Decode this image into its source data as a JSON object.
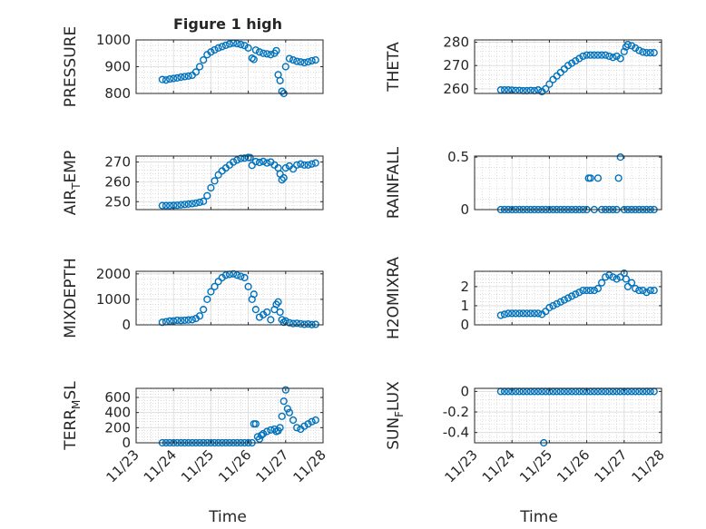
{
  "figure": {
    "title": "Figure 1 high",
    "xlabel": "Time",
    "marker_color": "#0072BD",
    "grid": "major+minor dotted"
  },
  "chart_data": [
    {
      "type": "scatter",
      "panel": "pressure",
      "ylabel_parts": [
        "PRESSURE"
      ],
      "ylim": [
        800,
        1000
      ],
      "yticks": [
        800,
        900,
        1000
      ],
      "ytick_labels": [
        "800",
        "900",
        "1000"
      ],
      "xlim": [
        0,
        5
      ],
      "xticks": [
        0,
        1,
        2,
        3,
        4,
        5
      ],
      "xtick_labels": [
        "11/23",
        "11/24",
        "11/25",
        "11/26",
        "11/27",
        "11/28"
      ],
      "x": [
        0.7,
        0.8,
        0.9,
        1.0,
        1.1,
        1.2,
        1.3,
        1.4,
        1.5,
        1.6,
        1.7,
        1.8,
        1.9,
        2.0,
        2.1,
        2.2,
        2.3,
        2.4,
        2.5,
        2.6,
        2.7,
        2.8,
        2.9,
        3.0,
        3.1,
        3.15,
        3.2,
        3.3,
        3.4,
        3.5,
        3.6,
        3.7,
        3.75,
        3.8,
        3.85,
        3.9,
        3.95,
        4.0,
        4.1,
        4.2,
        4.3,
        4.4,
        4.5,
        4.6,
        4.7,
        4.8
      ],
      "y": [
        852,
        850,
        854,
        856,
        858,
        861,
        863,
        865,
        868,
        880,
        900,
        925,
        945,
        955,
        963,
        970,
        975,
        980,
        985,
        988,
        986,
        983,
        979,
        970,
        932,
        927,
        962,
        955,
        950,
        948,
        945,
        950,
        960,
        870,
        848,
        808,
        800,
        900,
        930,
        925,
        920,
        918,
        915,
        918,
        922,
        925
      ]
    },
    {
      "type": "scatter",
      "panel": "theta",
      "ylabel_parts": [
        "THETA"
      ],
      "ylim": [
        258,
        281
      ],
      "yticks": [
        260,
        270,
        280
      ],
      "ytick_labels": [
        "260",
        "270",
        "280"
      ],
      "xlim": [
        0,
        5
      ],
      "xticks": [
        0,
        1,
        2,
        3,
        4,
        5
      ],
      "xtick_labels": [
        "11/23",
        "11/24",
        "11/25",
        "11/26",
        "11/27",
        "11/28"
      ],
      "x": [
        0.7,
        0.8,
        0.9,
        1.0,
        1.1,
        1.2,
        1.3,
        1.4,
        1.5,
        1.6,
        1.7,
        1.8,
        1.9,
        2.0,
        2.1,
        2.2,
        2.3,
        2.4,
        2.5,
        2.6,
        2.7,
        2.8,
        2.9,
        3.0,
        3.1,
        3.2,
        3.3,
        3.4,
        3.5,
        3.6,
        3.7,
        3.8,
        3.9,
        4.0,
        4.05,
        4.1,
        4.2,
        4.3,
        4.4,
        4.5,
        4.6,
        4.7,
        4.8
      ],
      "y": [
        259.5,
        259.5,
        259.5,
        259.4,
        259.3,
        259.3,
        259.2,
        259.2,
        259.3,
        259.2,
        259.5,
        258.8,
        260,
        262,
        264,
        265.5,
        267,
        268.5,
        270,
        271,
        272,
        273,
        274,
        274.5,
        274.5,
        274.5,
        274.5,
        274.5,
        274.5,
        274,
        273.5,
        274,
        273,
        276,
        278,
        279,
        278.5,
        277.5,
        276.5,
        275.8,
        275.5,
        275.5,
        275.5
      ]
    },
    {
      "type": "scatter",
      "panel": "air_temp",
      "ylabel_parts": [
        "AIR",
        "T",
        "EMP"
      ],
      "ylim": [
        246,
        273
      ],
      "yticks": [
        250,
        260,
        270
      ],
      "ytick_labels": [
        "250",
        "260",
        "270"
      ],
      "xlim": [
        0,
        5
      ],
      "xticks": [
        0,
        1,
        2,
        3,
        4,
        5
      ],
      "xtick_labels": [
        "11/23",
        "11/24",
        "11/25",
        "11/26",
        "11/27",
        "11/28"
      ],
      "x": [
        0.7,
        0.8,
        0.9,
        1.0,
        1.1,
        1.2,
        1.3,
        1.4,
        1.5,
        1.6,
        1.7,
        1.8,
        1.9,
        2.0,
        2.1,
        2.2,
        2.3,
        2.4,
        2.5,
        2.6,
        2.7,
        2.8,
        2.9,
        3.0,
        3.05,
        3.1,
        3.2,
        3.3,
        3.4,
        3.5,
        3.6,
        3.7,
        3.8,
        3.85,
        3.9,
        3.95,
        4.0,
        4.1,
        4.2,
        4.3,
        4.4,
        4.5,
        4.6,
        4.7,
        4.8
      ],
      "y": [
        248.0,
        248.0,
        248.0,
        248.1,
        248.2,
        248.4,
        248.6,
        248.8,
        249.0,
        249.3,
        249.7,
        250.2,
        253,
        257,
        260.5,
        263.5,
        265.5,
        267,
        268.5,
        270,
        271,
        271.8,
        272,
        272.3,
        272.2,
        268.3,
        270.2,
        269.8,
        270.3,
        269.5,
        270,
        268.5,
        267,
        264,
        261,
        262,
        267,
        268,
        266.5,
        268.5,
        269,
        268.5,
        268.5,
        269,
        269.5
      ]
    },
    {
      "type": "scatter",
      "panel": "rainfall",
      "ylabel_parts": [
        "RAINFALL"
      ],
      "ylim": [
        0,
        0.51
      ],
      "yticks": [
        0,
        0.5
      ],
      "ytick_labels": [
        "0",
        "0.5"
      ],
      "xlim": [
        0,
        5
      ],
      "xticks": [
        0,
        1,
        2,
        3,
        4,
        5
      ],
      "xtick_labels": [
        "11/23",
        "11/24",
        "11/25",
        "11/26",
        "11/27",
        "11/28"
      ],
      "x": [
        0.7,
        0.8,
        0.9,
        1.0,
        1.1,
        1.2,
        1.3,
        1.4,
        1.5,
        1.6,
        1.7,
        1.8,
        1.9,
        2.0,
        2.1,
        2.2,
        2.3,
        2.4,
        2.5,
        2.6,
        2.7,
        2.8,
        2.9,
        3.0,
        3.05,
        3.1,
        3.2,
        3.3,
        3.4,
        3.5,
        3.6,
        3.7,
        3.8,
        3.85,
        3.9,
        4.0,
        4.1,
        4.2,
        4.3,
        4.4,
        4.5,
        4.6,
        4.7,
        4.8
      ],
      "y": [
        0,
        0,
        0,
        0,
        0,
        0,
        0,
        0,
        0,
        0,
        0,
        0,
        0,
        0,
        0,
        0,
        0,
        0,
        0,
        0,
        0,
        0,
        0,
        0,
        0.3,
        0.3,
        0,
        0.3,
        0,
        0,
        0,
        0,
        0,
        0.3,
        0.5,
        0,
        0,
        0,
        0,
        0,
        0,
        0,
        0,
        0
      ]
    },
    {
      "type": "scatter",
      "panel": "mixdepth",
      "ylabel_parts": [
        "MIXDEPTH"
      ],
      "ylim": [
        0,
        2100
      ],
      "yticks": [
        0,
        1000,
        2000
      ],
      "ytick_labels": [
        "0",
        "1000",
        "2000"
      ],
      "xlim": [
        0,
        5
      ],
      "xticks": [
        0,
        1,
        2,
        3,
        4,
        5
      ],
      "xtick_labels": [
        "11/23",
        "11/24",
        "11/25",
        "11/26",
        "11/27",
        "11/28"
      ],
      "x": [
        0.7,
        0.8,
        0.9,
        1.0,
        1.1,
        1.2,
        1.3,
        1.4,
        1.5,
        1.6,
        1.7,
        1.8,
        1.9,
        2.0,
        2.1,
        2.2,
        2.3,
        2.4,
        2.5,
        2.6,
        2.7,
        2.8,
        2.9,
        3.0,
        3.1,
        3.15,
        3.2,
        3.3,
        3.4,
        3.5,
        3.6,
        3.7,
        3.75,
        3.8,
        3.85,
        3.9,
        3.95,
        4.0,
        4.1,
        4.2,
        4.3,
        4.4,
        4.5,
        4.6,
        4.7,
        4.8
      ],
      "y": [
        100,
        120,
        150,
        150,
        180,
        170,
        180,
        190,
        200,
        250,
        350,
        600,
        1000,
        1300,
        1500,
        1700,
        1850,
        1950,
        1980,
        2000,
        1950,
        1900,
        1850,
        1500,
        1000,
        1200,
        600,
        300,
        400,
        500,
        200,
        600,
        800,
        900,
        500,
        200,
        100,
        150,
        80,
        50,
        60,
        40,
        20,
        30,
        10,
        20
      ]
    },
    {
      "type": "scatter",
      "panel": "h2omixra",
      "ylabel_parts": [
        "H2OMIXRA"
      ],
      "ylim": [
        0,
        2.8
      ],
      "yticks": [
        0,
        1,
        2
      ],
      "ytick_labels": [
        "0",
        "1",
        "2"
      ],
      "xlim": [
        0,
        5
      ],
      "xticks": [
        0,
        1,
        2,
        3,
        4,
        5
      ],
      "xtick_labels": [
        "11/23",
        "11/24",
        "11/25",
        "11/26",
        "11/27",
        "11/28"
      ],
      "x": [
        0.7,
        0.8,
        0.9,
        1.0,
        1.1,
        1.2,
        1.3,
        1.4,
        1.5,
        1.6,
        1.7,
        1.8,
        1.9,
        2.0,
        2.1,
        2.2,
        2.3,
        2.4,
        2.5,
        2.6,
        2.7,
        2.8,
        2.9,
        3.0,
        3.1,
        3.2,
        3.3,
        3.4,
        3.5,
        3.6,
        3.7,
        3.8,
        3.9,
        4.0,
        4.05,
        4.1,
        4.2,
        4.3,
        4.4,
        4.5,
        4.6,
        4.7,
        4.8
      ],
      "y": [
        0.5,
        0.55,
        0.6,
        0.6,
        0.6,
        0.6,
        0.6,
        0.6,
        0.6,
        0.6,
        0.6,
        0.55,
        0.7,
        0.9,
        1.0,
        1.1,
        1.2,
        1.3,
        1.4,
        1.5,
        1.6,
        1.7,
        1.8,
        1.8,
        1.8,
        1.8,
        1.9,
        2.2,
        2.5,
        2.6,
        2.5,
        2.4,
        2.5,
        2.7,
        2.4,
        2.0,
        2.2,
        1.9,
        1.8,
        1.8,
        1.7,
        1.8,
        1.8
      ]
    },
    {
      "type": "scatter",
      "panel": "terr_msl",
      "ylabel_parts": [
        "TERR",
        "M",
        "SL"
      ],
      "ylim": [
        0,
        720
      ],
      "yticks": [
        0,
        200,
        400,
        600
      ],
      "ytick_labels": [
        "0",
        "200",
        "400",
        "600"
      ],
      "xlim": [
        0,
        5
      ],
      "xticks": [
        0,
        1,
        2,
        3,
        4,
        5
      ],
      "xtick_labels": [
        "11/23",
        "11/24",
        "11/25",
        "11/26",
        "11/27",
        "11/28"
      ],
      "x": [
        0.7,
        0.8,
        0.9,
        1.0,
        1.1,
        1.2,
        1.3,
        1.4,
        1.5,
        1.6,
        1.7,
        1.8,
        1.9,
        2.0,
        2.1,
        2.2,
        2.3,
        2.4,
        2.5,
        2.6,
        2.7,
        2.8,
        2.9,
        3.0,
        3.1,
        3.15,
        3.2,
        3.25,
        3.3,
        3.35,
        3.4,
        3.5,
        3.6,
        3.7,
        3.75,
        3.8,
        3.85,
        3.9,
        3.95,
        4.0,
        4.05,
        4.1,
        4.2,
        4.3,
        4.4,
        4.5,
        4.6,
        4.7,
        4.8
      ],
      "y": [
        0,
        0,
        0,
        0,
        0,
        0,
        0,
        0,
        0,
        0,
        0,
        0,
        0,
        0,
        0,
        0,
        0,
        0,
        0,
        0,
        0,
        0,
        0,
        0,
        0,
        250,
        250,
        80,
        50,
        100,
        120,
        150,
        170,
        180,
        150,
        160,
        200,
        350,
        550,
        700,
        450,
        400,
        300,
        200,
        180,
        220,
        250,
        280,
        300
      ]
    },
    {
      "type": "scatter",
      "panel": "sun_flux",
      "ylabel_parts": [
        "SUN",
        "F",
        "LUX"
      ],
      "ylim": [
        -0.5,
        0.03
      ],
      "yticks": [
        -0.4,
        -0.2,
        0
      ],
      "ytick_labels": [
        "-0.4",
        "-0.2",
        "0"
      ],
      "xlim": [
        0,
        5
      ],
      "xticks": [
        0,
        1,
        2,
        3,
        4,
        5
      ],
      "xtick_labels": [
        "11/23",
        "11/24",
        "11/25",
        "11/26",
        "11/27",
        "11/28"
      ],
      "x": [
        0.7,
        0.8,
        0.9,
        1.0,
        1.1,
        1.2,
        1.3,
        1.4,
        1.5,
        1.6,
        1.7,
        1.8,
        1.85,
        1.9,
        2.0,
        2.1,
        2.2,
        2.3,
        2.4,
        2.5,
        2.6,
        2.7,
        2.8,
        2.9,
        3.0,
        3.1,
        3.2,
        3.3,
        3.4,
        3.5,
        3.6,
        3.7,
        3.8,
        3.9,
        4.0,
        4.1,
        4.2,
        4.3,
        4.4,
        4.5,
        4.6,
        4.7,
        4.8
      ],
      "y": [
        0,
        0,
        0,
        0,
        0,
        0,
        0,
        0,
        0,
        0,
        0,
        0,
        -0.5,
        0,
        0,
        0,
        0,
        0,
        0,
        0,
        0,
        0,
        0,
        0,
        0,
        0,
        0,
        0,
        0,
        0,
        0,
        0,
        0,
        0,
        0,
        0,
        0,
        0,
        0,
        0,
        0,
        0,
        0
      ]
    }
  ]
}
